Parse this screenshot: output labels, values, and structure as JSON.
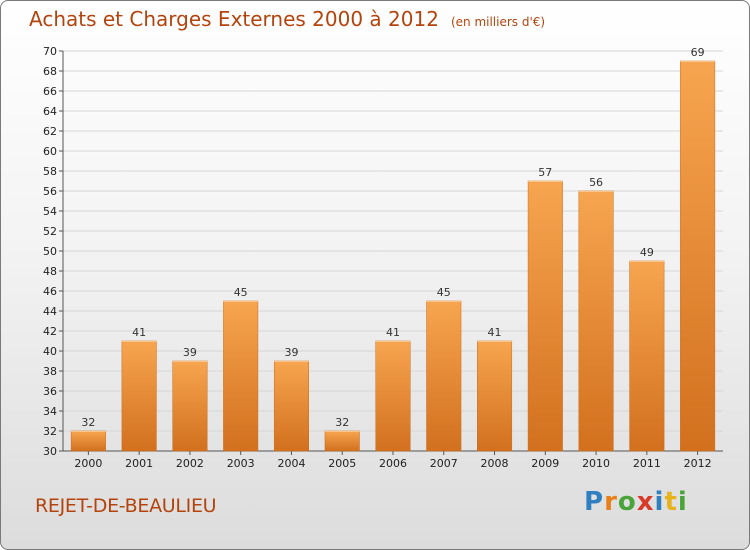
{
  "title": "Achats et Charges Externes 2000 à 2012",
  "subtitle": "(en milliers d'€)",
  "commune": "REJET-DE-BEAULIEU",
  "logo": {
    "text": "Proxiti",
    "letters": [
      "P",
      "r",
      "o",
      "x",
      "i",
      "t",
      "i"
    ],
    "colors": [
      "#2f7fc1",
      "#e8801a",
      "#4aa43a",
      "#d93a2a",
      "#2f7fc1",
      "#e8b21a",
      "#4aa43a"
    ]
  },
  "colors": {
    "bar_top": "#f7a550",
    "bar_bottom": "#d2701e",
    "title": "#b4440d"
  },
  "chart_data": {
    "type": "bar",
    "title": "Achats et Charges Externes 2000 à 2012",
    "subtitle": "(en milliers d'€)",
    "categories": [
      "2000",
      "2001",
      "2002",
      "2003",
      "2004",
      "2005",
      "2006",
      "2007",
      "2008",
      "2009",
      "2010",
      "2011",
      "2012"
    ],
    "values": [
      32,
      41,
      39,
      45,
      39,
      32,
      41,
      45,
      41,
      57,
      56,
      49,
      69
    ],
    "ylim": [
      30,
      70
    ],
    "yticks": [
      30,
      32,
      34,
      36,
      38,
      40,
      42,
      44,
      46,
      48,
      50,
      52,
      54,
      56,
      58,
      60,
      62,
      64,
      66,
      68,
      70
    ],
    "grid": true,
    "xlabel": "",
    "ylabel": ""
  }
}
